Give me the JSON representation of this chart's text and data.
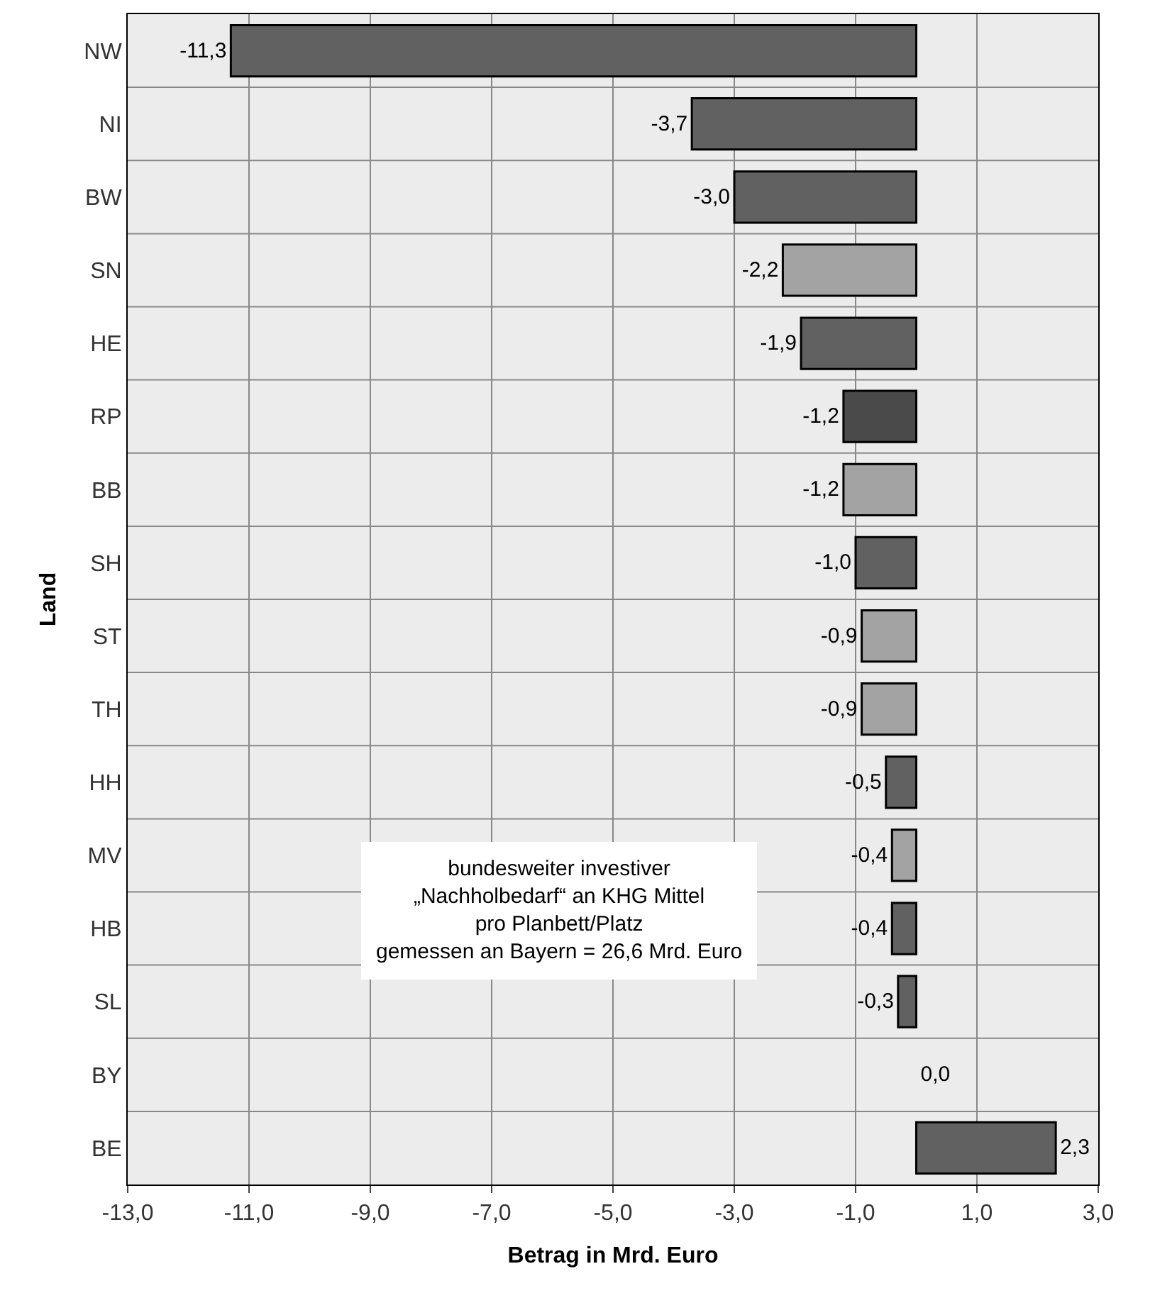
{
  "chart_data": {
    "type": "bar",
    "orientation": "horizontal",
    "xlabel": "Betrag in Mrd. Euro",
    "ylabel": "Land",
    "categories": [
      "NW",
      "NI",
      "BW",
      "SN",
      "HE",
      "RP",
      "BB",
      "SH",
      "ST",
      "TH",
      "HH",
      "MV",
      "HB",
      "SL",
      "BY",
      "BE"
    ],
    "values": [
      -11.3,
      -3.7,
      -3.0,
      -2.2,
      -1.9,
      -1.2,
      -1.2,
      -1.0,
      -0.9,
      -0.9,
      -0.5,
      -0.4,
      -0.4,
      -0.3,
      0.0,
      2.3
    ],
    "value_labels": [
      "-11,3",
      "-3,7",
      "-3,0",
      "-2,2",
      "-1,9",
      "-1,2",
      "-1,2",
      "-1,0",
      "-0,9",
      "-0,9",
      "-0,5",
      "-0,4",
      "-0,4",
      "-0,3",
      "0,0",
      "2,3"
    ],
    "colors": [
      "#616161",
      "#616161",
      "#616161",
      "#a3a3a3",
      "#616161",
      "#4a4a4a",
      "#a3a3a3",
      "#616161",
      "#a3a3a3",
      "#a3a3a3",
      "#616161",
      "#a3a3a3",
      "#616161",
      "#616161",
      "#616161",
      "#616161"
    ],
    "xlim": [
      -13,
      3
    ],
    "xticks": [
      {
        "value": -13,
        "label": "-13,0"
      },
      {
        "value": -11,
        "label": "-11,0"
      },
      {
        "value": -9,
        "label": "-9,0"
      },
      {
        "value": -7,
        "label": "-7,0"
      },
      {
        "value": -5,
        "label": "-5,0"
      },
      {
        "value": -3,
        "label": "-3,0"
      },
      {
        "value": -1,
        "label": "-1,0"
      },
      {
        "value": 1,
        "label": "1,0"
      },
      {
        "value": 3,
        "label": "3,0"
      }
    ],
    "grid": true,
    "annotations": [
      "bundesweiter investiver\n„Nachholbedarf“ an KHG Mittel\npro Planbett/Platz\ngemessen an Bayern = 26,6 Mrd. Euro"
    ]
  }
}
